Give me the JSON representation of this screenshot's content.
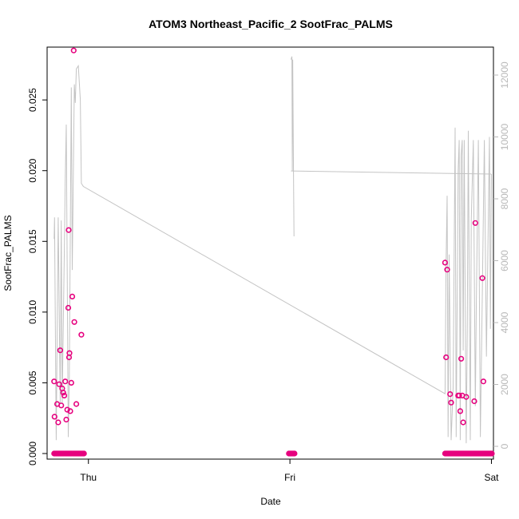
{
  "chart_data": {
    "type": "scatter",
    "title": "ATOM3 Northeast_Pacific_2 SootFrac_PALMS",
    "xlabel": "Date",
    "ylabel": "SootFrac_PALMS",
    "x_ticks": [
      "Thu",
      "Fri",
      "Sat"
    ],
    "x_range_days": [
      -0.205,
      2.01
    ],
    "ylim_left": [
      0,
      0.0295
    ],
    "y_ticks_left": [
      "0.000",
      "0.005",
      "0.010",
      "0.015",
      "0.020",
      "0.025"
    ],
    "y_tick_values_left": [
      0,
      0.005,
      0.01,
      0.015,
      0.02,
      0.025
    ],
    "ylim_right": [
      0,
      12300
    ],
    "y_ticks_right": [
      "0",
      "2000",
      "4000",
      "6000",
      "8000",
      "10000",
      "12000"
    ],
    "y_tick_values_right": [
      0,
      2000,
      4000,
      6000,
      8000,
      10000,
      12000
    ],
    "grid": false,
    "legend": "none",
    "series": [
      {
        "kind": "points",
        "axis": "left",
        "color": "#e6007e",
        "x": [
          -0.17,
          -0.168,
          -0.155,
          -0.15,
          -0.145,
          -0.14,
          -0.135,
          -0.13,
          -0.125,
          -0.12,
          -0.115,
          -0.11,
          -0.105,
          -0.1,
          -0.098,
          -0.096,
          -0.094,
          -0.09,
          -0.085,
          -0.08,
          -0.07,
          -0.06,
          1.77,
          1.775,
          1.78,
          1.795,
          1.8,
          1.835,
          1.84,
          1.845,
          1.85,
          1.855,
          1.86,
          1.875,
          1.915,
          1.92,
          1.955,
          1.96
        ],
        "y": [
          0.0051,
          0.0026,
          0.0035,
          0.0022,
          0.0049,
          0.0073,
          0.0034,
          0.0046,
          0.0043,
          0.0041,
          0.0051,
          0.0024,
          0.0031,
          0.0103,
          0.0158,
          0.0068,
          0.0071,
          0.003,
          0.005,
          0.0111,
          0.0093,
          0.0035,
          0.0135,
          0.0068,
          0.013,
          0.0042,
          0.0036,
          0.0041,
          0.0041,
          0.003,
          0.0067,
          0.0041,
          0.0022,
          0.004,
          0.0037,
          0.0163,
          0.0124,
          0.0051
        ],
        "zero_runs": [
          [
            -0.17,
            -0.02
          ],
          [
            0.995,
            1.025
          ],
          [
            1.77,
            2.005
          ]
        ],
        "extra_points": [
          [
            -0.073,
            0.0285
          ],
          [
            -0.035,
            0.0084
          ]
        ]
      },
      {
        "kind": "line",
        "axis": "right",
        "color": "#c4c4c4",
        "x": [
          -0.17,
          -0.168,
          -0.16,
          -0.15,
          -0.14,
          -0.135,
          -0.13,
          -0.12,
          -0.115,
          -0.11,
          -0.1,
          -0.095,
          -0.085,
          -0.08,
          -0.07,
          -0.065,
          -0.06,
          -0.05,
          -0.04,
          -0.035,
          -0.025,
          1.77,
          1.775,
          1.78,
          1.785,
          1.79,
          1.8,
          1.81,
          1.82,
          1.825,
          1.835,
          1.84,
          1.845,
          1.85,
          1.855,
          1.86,
          1.865,
          1.87,
          1.875,
          1.88,
          1.885,
          1.895,
          1.9,
          1.91,
          1.92,
          1.925,
          1.935,
          1.945,
          1.955,
          1.965,
          1.975,
          1.99,
          1.995,
          2.0
        ],
        "y": [
          6700,
          7400,
          200,
          7400,
          1400,
          7300,
          1400,
          6200,
          8600,
          10400,
          300,
          2200,
          11600,
          5700,
          11700,
          11100,
          12200,
          12300,
          11200,
          8500,
          8400,
          1700,
          6000,
          8100,
          300,
          6200,
          200,
          1900,
          10300,
          300,
          8900,
          9900,
          200,
          9400,
          9900,
          3100,
          9900,
          4400,
          100,
          3700,
          10200,
          200,
          7300,
          9900,
          1300,
          4500,
          9900,
          300,
          5000,
          9900,
          2900,
          10000,
          3800,
          8800
        ],
        "extra_segments": [
          {
            "x": [
              1.005,
              1.01,
              1.012,
              1.014,
              1.018,
              1.02,
              1.022
            ],
            "y": [
              12500,
              12600,
              8900,
              12500,
              8800,
              6800,
              6800
            ]
          },
          {
            "x": [
              1.005,
              2.0
            ],
            "y": [
              8900,
              8800
            ]
          }
        ]
      }
    ]
  }
}
